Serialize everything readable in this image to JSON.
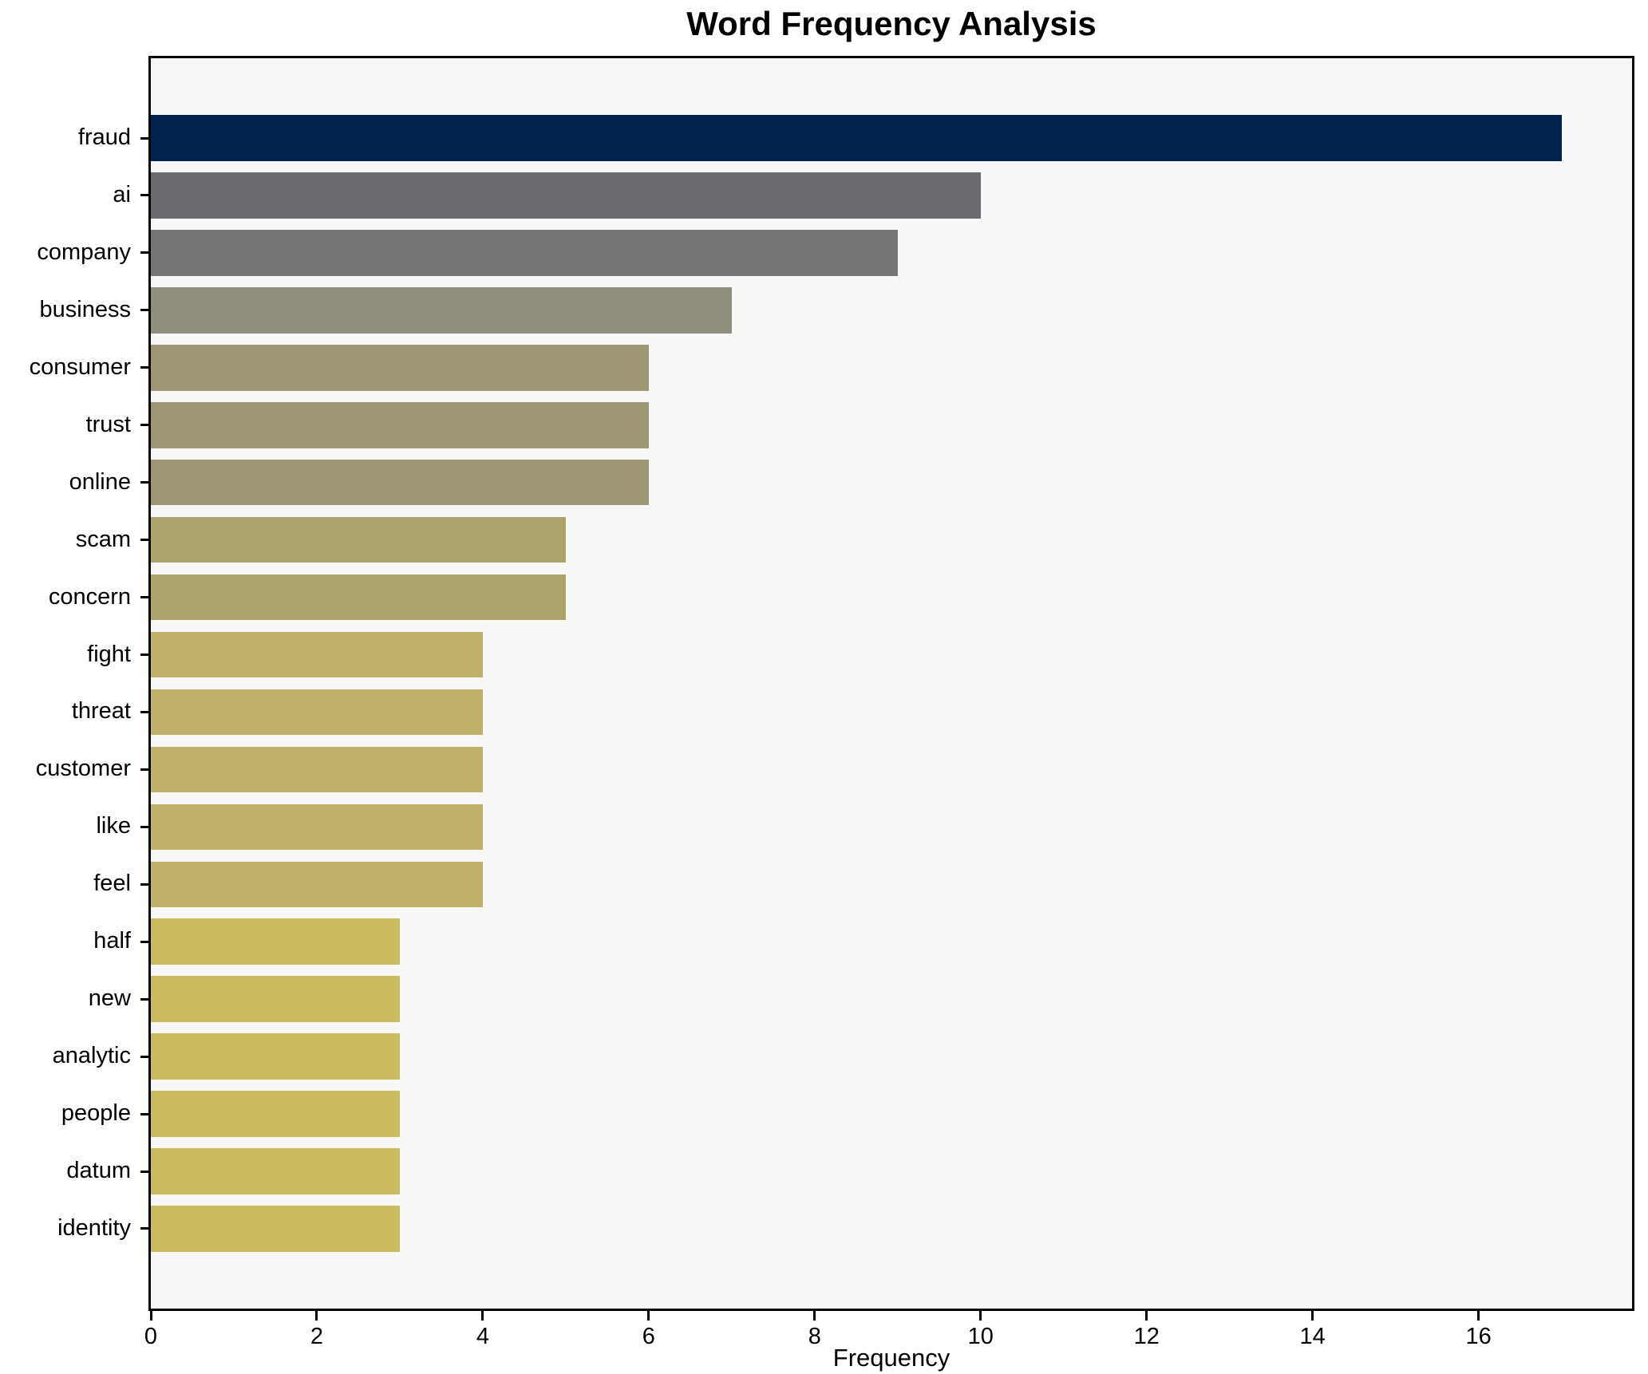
{
  "chart_data": {
    "type": "bar",
    "orientation": "horizontal",
    "title": "Word Frequency Analysis",
    "xlabel": "Frequency",
    "ylabel": "",
    "categories": [
      "fraud",
      "ai",
      "company",
      "business",
      "consumer",
      "trust",
      "online",
      "scam",
      "concern",
      "fight",
      "threat",
      "customer",
      "like",
      "feel",
      "half",
      "new",
      "analytic",
      "people",
      "datum",
      "identity"
    ],
    "values": [
      17,
      10,
      9,
      7,
      6,
      6,
      6,
      5,
      5,
      4,
      4,
      4,
      4,
      4,
      3,
      3,
      3,
      3,
      3,
      3
    ],
    "bar_colors": [
      "#002350",
      "#6a6b6e",
      "#767677",
      "#918e7b",
      "#9f9877",
      "#9f9877",
      "#9f9877",
      "#ada26a",
      "#ada26a",
      "#c0b169",
      "#c0b169",
      "#c0b169",
      "#c0b169",
      "#c0b169",
      "#cdbc5f",
      "#cdbc5f",
      "#cdbc5f",
      "#cdbc5f",
      "#cdbc5f",
      "#cdbc5f"
    ],
    "xlim": [
      0,
      17.85
    ],
    "x_ticks": [
      0,
      2,
      4,
      6,
      8,
      10,
      12,
      14,
      16
    ],
    "grid": false,
    "legend": "none",
    "plot_bg_color": "#f7f7f6",
    "figure_bg_color": "#ffffff",
    "spine_color": "#000000"
  }
}
